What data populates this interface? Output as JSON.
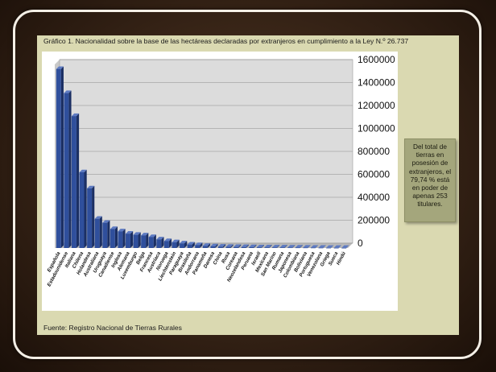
{
  "slide": {
    "source": "Fuente: Registro Nacional de Tierras Rurales",
    "callout": "Del total de tierras en posesión de extranjeros, el 79,74 % está en poder de apenas 253 titulares."
  },
  "chart_data": {
    "type": "bar",
    "title": "Gráfico 1. Nacionalidad sobre la base de las hectáreas declaradas por extranjeros en cumplimiento a la Ley N.º 26.737",
    "xlabel": "",
    "ylabel": "",
    "ylim": [
      0,
      1600000
    ],
    "yticks": [
      0,
      200000,
      400000,
      600000,
      800000,
      1000000,
      1200000,
      1400000,
      1600000
    ],
    "y_axis_position": "right",
    "style": "3d-columns",
    "color": "#2f4f9c",
    "grid": true,
    "legend": "none",
    "categories": [
      "Española",
      "Estadounidense",
      "Italiana",
      "Chilena",
      "Holandesa",
      "Australiana",
      "Uruguaya",
      "Canadiense",
      "Inglesa",
      "Alemana",
      "Luxemburgo",
      "Belga",
      "Francesa",
      "Austríaca",
      "Noruega",
      "Liechtenstein",
      "Paraguaya",
      "Brasileña",
      "Andorrana",
      "Panameña",
      "Danesa",
      "China",
      "Rusa",
      "Coreana",
      "Neozelandesa",
      "Peruana",
      "Israelí",
      "Mexicana",
      "San Marino",
      "Rumana",
      "Japonesa",
      "Colombiana",
      "Boliviana",
      "Portuguesa",
      "Venezolana",
      "Griega",
      "Sueca",
      "Hindú"
    ],
    "values": [
      1560000,
      1350000,
      1150000,
      660000,
      520000,
      255000,
      220000,
      165000,
      145000,
      125000,
      115000,
      110000,
      95000,
      75000,
      60000,
      50000,
      40000,
      30000,
      25000,
      18000,
      14000,
      12000,
      10000,
      9000,
      8000,
      7000,
      6000,
      5500,
      5000,
      4500,
      4000,
      3500,
      3000,
      2500,
      2000,
      1500,
      1000,
      800
    ]
  }
}
